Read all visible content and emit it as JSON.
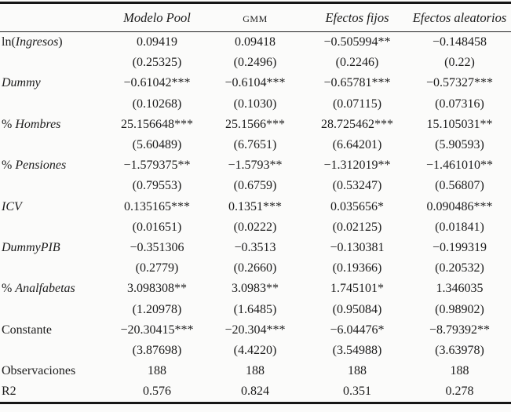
{
  "header": {
    "col1": "Modelo Pool",
    "col2": "GMM",
    "col3": "Efectos fijos",
    "col4": "Efectos aleatorios"
  },
  "rows": [
    {
      "pre": "ln(",
      "it": "Ingresos",
      "post": ")",
      "cells": [
        "0.09419",
        "0.09418",
        "−0.505994**",
        "−0.148458"
      ]
    },
    {
      "pre": "",
      "it": "",
      "post": "",
      "cells": [
        "(0.25325)",
        "(0.2496)",
        "(0.2246)",
        "(0.22)"
      ]
    },
    {
      "pre": "",
      "it": "Dummy",
      "post": "",
      "cells": [
        "−0.61042***",
        "−0.6104***",
        "−0.65781***",
        "−0.57327***"
      ]
    },
    {
      "pre": "",
      "it": "",
      "post": "",
      "cells": [
        "(0.10268)",
        "(0.1030)",
        "(0.07115)",
        "(0.07316)"
      ]
    },
    {
      "pre": "% ",
      "it": "Hombres",
      "post": "",
      "cells": [
        "25.156648***",
        "25.1566***",
        "28.725462***",
        "15.105031**"
      ]
    },
    {
      "pre": "",
      "it": "",
      "post": "",
      "cells": [
        "(5.60489)",
        "(6.7651)",
        "(6.64201)",
        "(5.90593)"
      ]
    },
    {
      "pre": "% ",
      "it": "Pensiones",
      "post": "",
      "cells": [
        "−1.579375**",
        "−1.5793**",
        "−1.312019**",
        "−1.461010**"
      ]
    },
    {
      "pre": "",
      "it": "",
      "post": "",
      "cells": [
        "(0.79553)",
        "(0.6759)",
        "(0.53247)",
        "(0.56807)"
      ]
    },
    {
      "pre": "",
      "it": "ICV",
      "post": "",
      "cells": [
        "0.135165***",
        "0.1351***",
        "0.035656*",
        "0.090486***"
      ]
    },
    {
      "pre": "",
      "it": "",
      "post": "",
      "cells": [
        "(0.01651)",
        "(0.0222)",
        "(0.02125)",
        "(0.01841)"
      ]
    },
    {
      "pre": "",
      "it": "DummyPIB",
      "post": "",
      "cells": [
        "−0.351306",
        "−0.3513",
        "−0.130381",
        "−0.199319"
      ]
    },
    {
      "pre": "",
      "it": "",
      "post": "",
      "cells": [
        "(0.2779)",
        "(0.2660)",
        "(0.19366)",
        "(0.20532)"
      ]
    },
    {
      "pre": "% ",
      "it": "Analfabetas",
      "post": "",
      "cells": [
        "3.098308**",
        "3.0983**",
        "1.745101*",
        "1.346035"
      ]
    },
    {
      "pre": "",
      "it": "",
      "post": "",
      "cells": [
        "(1.20978)",
        "(1.6485)",
        "(0.95084)",
        "(0.98902)"
      ]
    },
    {
      "pre": "Constante",
      "it": "",
      "post": "",
      "cells": [
        "−20.30415***",
        "−20.304***",
        "−6.04476*",
        "−8.79392**"
      ]
    },
    {
      "pre": "",
      "it": "",
      "post": "",
      "cells": [
        "(3.87698)",
        "(4.4220)",
        "(3.54988)",
        "(3.63978)"
      ]
    },
    {
      "pre": "Observaciones",
      "it": "",
      "post": "",
      "cells": [
        "188",
        "188",
        "188",
        "188"
      ]
    },
    {
      "pre": "R2",
      "it": "",
      "post": "",
      "cells": [
        "0.576",
        "0.824",
        "0.351",
        "0.278"
      ]
    }
  ]
}
